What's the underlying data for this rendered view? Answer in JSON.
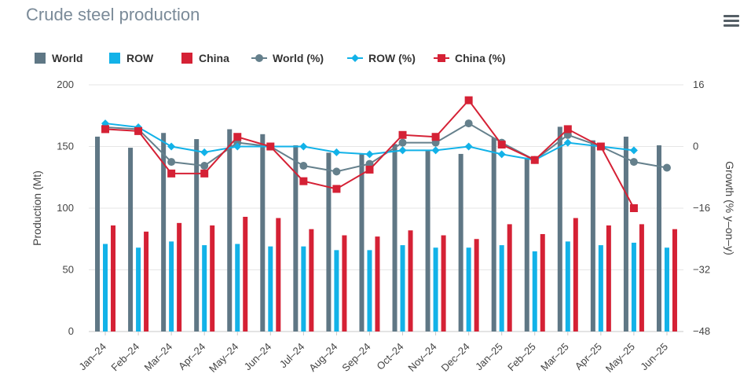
{
  "title": "Crude steel production",
  "menu_icon": "hamburger-menu-icon",
  "colors": {
    "world": "#5f7785",
    "row": "#12b2e8",
    "china": "#d52135",
    "world_line": "#65808c",
    "row_line": "#12b2e8",
    "china_line": "#d52135",
    "grid": "#e6e6e6"
  },
  "chart_data": {
    "type": "bar",
    "title": "Crude steel production",
    "categories": [
      "Jan–24",
      "Feb–24",
      "Mar–24",
      "Apr–24",
      "May–24",
      "Jun–24",
      "Jul–24",
      "Aug–24",
      "Sep–24",
      "Oct–24",
      "Nov–24",
      "Dec–24",
      "Jan–25",
      "Feb–25",
      "Mar–25",
      "Apr–25",
      "May–25",
      "Jun–25"
    ],
    "ylabel": "Production (Mt)",
    "y2label": "Growth (% y–on–y)",
    "ylim": [
      0,
      200
    ],
    "y2lim": [
      -48,
      16
    ],
    "y_ticks": [
      "0",
      "50",
      "100",
      "150",
      "200"
    ],
    "y2_ticks": [
      "−48",
      "−32",
      "−16",
      "0",
      "16"
    ],
    "grid": true,
    "legend_position": "top-left",
    "series": [
      {
        "name": "World",
        "kind": "bar",
        "axis": "left",
        "values": [
          158,
          149,
          161,
          156,
          164,
          160,
          151,
          145,
          144,
          152,
          147,
          144,
          157,
          141,
          166,
          155,
          158,
          151
        ]
      },
      {
        "name": "ROW",
        "kind": "bar",
        "axis": "left",
        "values": [
          71,
          68,
          73,
          70,
          71,
          69,
          69,
          66,
          66,
          70,
          68,
          68,
          70,
          65,
          73,
          70,
          72,
          68
        ]
      },
      {
        "name": "China",
        "kind": "bar",
        "axis": "left",
        "values": [
          86,
          81,
          88,
          86,
          93,
          92,
          83,
          78,
          77,
          82,
          78,
          75,
          87,
          79,
          92,
          86,
          87,
          83
        ]
      },
      {
        "name": "World (%)",
        "kind": "line",
        "axis": "right",
        "marker": "circle",
        "values": [
          5,
          4.5,
          -4,
          -5,
          1,
          0,
          -5,
          -6.5,
          -4.5,
          1,
          1,
          6,
          1,
          -3.5,
          3,
          0,
          -4,
          -5.5
        ]
      },
      {
        "name": "ROW (%)",
        "kind": "line",
        "axis": "right",
        "marker": "diamond",
        "values": [
          6,
          5,
          0,
          -1.5,
          0,
          0,
          0,
          -1.5,
          -2,
          -1,
          -1,
          0,
          -2,
          -3.5,
          1,
          0,
          -1,
          null
        ]
      },
      {
        "name": "China (%)",
        "kind": "line",
        "axis": "right",
        "marker": "square",
        "values": [
          4.5,
          4,
          -7,
          -7,
          2.5,
          0,
          -9,
          -11,
          -6,
          3,
          2.5,
          12,
          0.5,
          -3.5,
          4.5,
          0,
          -16,
          null
        ]
      }
    ]
  }
}
